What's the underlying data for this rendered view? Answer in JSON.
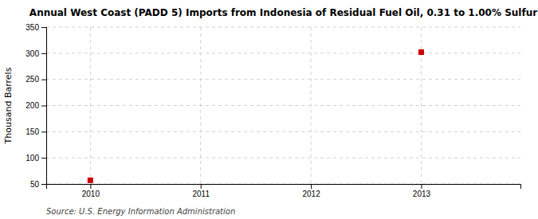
{
  "chart_data": {
    "type": "scatter",
    "title": "Annual West Coast (PADD 5) Imports from Indonesia of Residual Fuel Oil, 0.31 to 1.00% Sulfur",
    "ylabel": "Thousand Barrels",
    "source": "Source: U.S. Energy Information Administration",
    "x": [
      2010,
      2013
    ],
    "values": [
      57,
      302
    ],
    "color": "#cc0000",
    "marker": "square",
    "xlim": [
      2009.6,
      2013.9
    ],
    "ylim": [
      50,
      350
    ],
    "xticks": [
      2010,
      2011,
      2012,
      2013
    ],
    "yticks": [
      50,
      100,
      150,
      200,
      250,
      300,
      350
    ],
    "grid": true
  }
}
